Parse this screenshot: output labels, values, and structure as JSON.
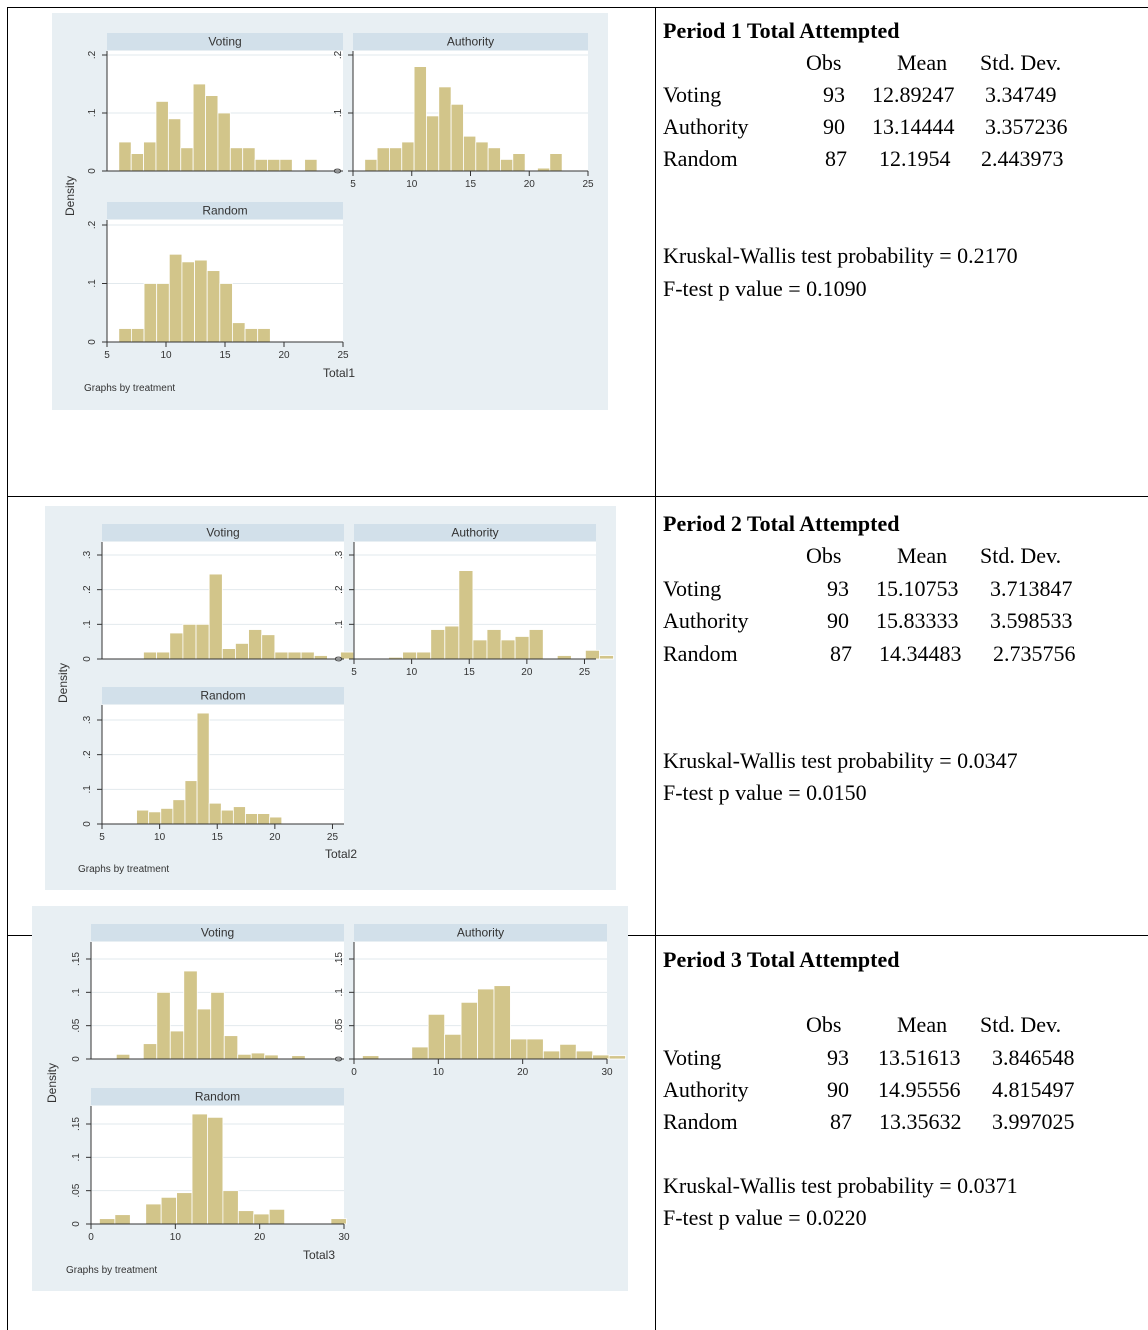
{
  "chart_data": [
    {
      "type": "bar",
      "xlabel": "Total1",
      "ylabel": "Density",
      "note": "Graphs by treatment",
      "xlim": [
        5,
        25
      ],
      "ylim": [
        0,
        0.2
      ],
      "xticks": [
        "5",
        "10",
        "15",
        "20",
        "25"
      ],
      "yticks": [
        "0",
        ".1",
        ".2"
      ],
      "panels": [
        {
          "name": "Voting",
          "bin_start": 6,
          "bin_width": 1.05,
          "values": [
            0.05,
            0.03,
            0.05,
            0.12,
            0.09,
            0.04,
            0.15,
            0.13,
            0.1,
            0.04,
            0.04,
            0.02,
            0.02,
            0.02,
            0.0,
            0.02
          ]
        },
        {
          "name": "Authority",
          "bin_start": 6,
          "bin_width": 1.05,
          "values": [
            0.02,
            0.04,
            0.04,
            0.05,
            0.18,
            0.095,
            0.145,
            0.115,
            0.06,
            0.05,
            0.04,
            0.02,
            0.03,
            0.0,
            0.005,
            0.03
          ]
        },
        {
          "name": "Random",
          "bin_start": 6,
          "bin_width": 1.07,
          "values": [
            0.023,
            0.023,
            0.1,
            0.1,
            0.15,
            0.137,
            0.14,
            0.122,
            0.1,
            0.033,
            0.023,
            0.023
          ]
        }
      ]
    },
    {
      "type": "bar",
      "xlabel": "Total2",
      "ylabel": "Density",
      "note": "Graphs by treatment",
      "xlim": [
        5,
        26
      ],
      "ylim": [
        0,
        0.32
      ],
      "xticks": [
        "5",
        "10",
        "15",
        "20",
        "25"
      ],
      "yticks": [
        "0",
        ".1",
        ".2",
        ".3"
      ],
      "panels": [
        {
          "name": "Voting",
          "bin_start": 8.6,
          "bin_width": 1.14,
          "values": [
            0.02,
            0.02,
            0.075,
            0.1,
            0.1,
            0.245,
            0.03,
            0.045,
            0.085,
            0.07,
            0.02,
            0.02,
            0.02,
            0.01,
            0.0,
            0.02
          ]
        },
        {
          "name": "Authority",
          "bin_start": 8,
          "bin_width": 1.22,
          "values": [
            0.005,
            0.02,
            0.02,
            0.085,
            0.095,
            0.255,
            0.055,
            0.085,
            0.055,
            0.065,
            0.085,
            0.0,
            0.01,
            0.0,
            0.025,
            0.01
          ]
        },
        {
          "name": "Random",
          "bin_start": 8,
          "bin_width": 1.05,
          "values": [
            0.04,
            0.035,
            0.045,
            0.07,
            0.125,
            0.32,
            0.06,
            0.04,
            0.05,
            0.03,
            0.03,
            0.02
          ]
        }
      ]
    },
    {
      "type": "bar",
      "xlabel": "Total3",
      "ylabel": "Density",
      "note": "Graphs by treatment",
      "xlim": [
        0,
        30
      ],
      "ylim": [
        0,
        0.16
      ],
      "xticks": [
        "0",
        "10",
        "20",
        "30"
      ],
      "yticks": [
        "0",
        ".05",
        ".1",
        ".15"
      ],
      "panels": [
        {
          "name": "Voting",
          "bin_start": 3,
          "bin_width": 1.6,
          "values": [
            0.007,
            0.0,
            0.023,
            0.1,
            0.042,
            0.132,
            0.075,
            0.1,
            0.035,
            0.007,
            0.009,
            0.006,
            0.0,
            0.005
          ]
        },
        {
          "name": "Authority",
          "bin_start": 1,
          "bin_width": 1.95,
          "values": [
            0.005,
            0.0,
            0.0,
            0.018,
            0.067,
            0.037,
            0.085,
            0.105,
            0.11,
            0.03,
            0.03,
            0.012,
            0.022,
            0.012,
            0.006,
            0.005
          ]
        },
        {
          "name": "Random",
          "bin_start": 1,
          "bin_width": 1.83,
          "values": [
            0.008,
            0.014,
            0.0,
            0.03,
            0.04,
            0.047,
            0.165,
            0.16,
            0.05,
            0.02,
            0.015,
            0.022,
            0.0,
            0.0,
            0.0,
            0.008
          ]
        }
      ]
    }
  ],
  "stats": [
    {
      "title": "Period 1 Total Attempted",
      "headers": [
        "Obs",
        "Mean",
        "Std. Dev."
      ],
      "rows": [
        {
          "label": "Voting",
          "obs": "93",
          "mean": "12.89247",
          "sd": "3.34749"
        },
        {
          "label": "Authority",
          "obs": "90",
          "mean": "13.14444",
          "sd": "3.357236"
        },
        {
          "label": "Random",
          "obs": "87",
          "mean": "12.1954",
          "sd": "2.443973"
        }
      ],
      "kw": "Kruskal-Wallis test probability = 0.2170",
      "ftest": "F-test p value =  0.1090"
    },
    {
      "title": "Period 2 Total Attempted",
      "headers": [
        "Obs",
        "Mean",
        "Std. Dev."
      ],
      "rows": [
        {
          "label": "Voting",
          "obs": "93",
          "mean": "15.10753",
          "sd": "3.713847"
        },
        {
          "label": "Authority",
          "obs": "90",
          "mean": "15.83333",
          "sd": "3.598533"
        },
        {
          "label": "Random",
          "obs": "87",
          "mean": "14.34483",
          "sd": "2.735756"
        }
      ],
      "kw": "Kruskal-Wallis test probability =   0.0347",
      "ftest": "F-test p value = 0.0150"
    },
    {
      "title": "Period 3 Total Attempted",
      "headers": [
        "Obs",
        "Mean",
        "Std. Dev."
      ],
      "rows": [
        {
          "label": "Voting",
          "obs": "93",
          "mean": "13.51613",
          "sd": "3.846548"
        },
        {
          "label": "Authority",
          "obs": "90",
          "mean": "14.95556",
          "sd": "4.815497"
        },
        {
          "label": "Random",
          "obs": "87",
          "mean": "13.35632",
          "sd": "3.997025"
        }
      ],
      "kw": "Kruskal-Wallis test probability =    0.0371",
      "ftest": "F-test p value =  0.0220"
    }
  ],
  "colors": {
    "bar_fill": "#d2c58a",
    "bar_stroke": "#ffffff",
    "chart_bg": "#e8eff3",
    "panel_header": "#d2e0ea",
    "plot_bg": "#ffffff",
    "gridline": "#e2e9ed"
  }
}
